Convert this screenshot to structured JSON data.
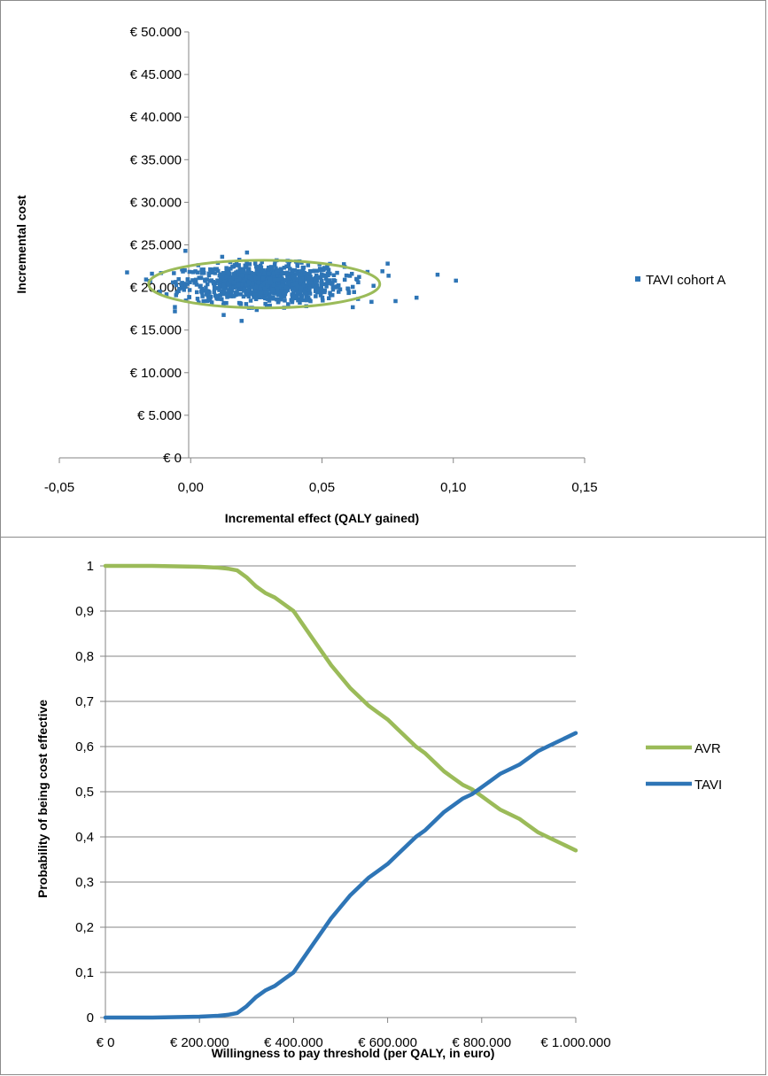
{
  "chart_data": [
    {
      "type": "scatter",
      "xlabel": "Incremental effect (QALY gained)",
      "ylabel": "Incremental cost",
      "xlim": [
        -0.05,
        0.15
      ],
      "ylim": [
        0,
        50000
      ],
      "x_ticks": [
        "-0,05",
        "0,00",
        "0,05",
        "0,10",
        "0,15"
      ],
      "y_ticks": [
        "€ 0",
        "€ 5.000",
        "€ 10.000",
        "€ 15.000",
        "€ 20.000",
        "€ 25.000",
        "€ 30.000",
        "€ 35.000",
        "€ 40.000",
        "€ 45.000",
        "€ 50.000"
      ],
      "legend_position": "right",
      "series": [
        {
          "name": "TAVI cohort A",
          "color": "#2e75b6",
          "marker": "square",
          "cloud": {
            "x_mean": 0.028,
            "x_sd": 0.015,
            "y_mean": 20500,
            "y_sd": 1100,
            "count": 1000
          },
          "outliers": [
            {
              "x": 0.094,
              "y": 21500
            },
            {
              "x": 0.101,
              "y": 20800
            },
            {
              "x": 0.086,
              "y": 18800
            },
            {
              "x": 0.078,
              "y": 18400
            },
            {
              "x": 0.075,
              "y": 22800
            },
            {
              "x": 0.073,
              "y": 21900
            },
            {
              "x": -0.006,
              "y": 17200
            },
            {
              "x": -0.002,
              "y": 24300
            },
            {
              "x": 0.012,
              "y": 23600
            },
            {
              "x": 0.044,
              "y": 17800
            }
          ]
        }
      ],
      "ellipse": {
        "cx": 0.028,
        "cy": 20400,
        "rx": 0.044,
        "ry": 2800,
        "color": "#9bbb59"
      }
    },
    {
      "type": "line",
      "xlabel": "Willingness to pay threshold (per QALY, in euro)",
      "ylabel": "Probability of being cost effective",
      "xlim": [
        0,
        1000000
      ],
      "ylim": [
        0,
        1
      ],
      "x_ticks": [
        "€ 0",
        "€ 200.000",
        "€ 400.000",
        "€ 600.000",
        "€ 800.000",
        "€ 1.000.000"
      ],
      "y_ticks": [
        "0",
        "0,1",
        "0,2",
        "0,3",
        "0,4",
        "0,5",
        "0,6",
        "0,7",
        "0,8",
        "0,9",
        "1"
      ],
      "grid": true,
      "legend_position": "right",
      "x": [
        0,
        100000,
        200000,
        240000,
        260000,
        280000,
        300000,
        320000,
        340000,
        360000,
        380000,
        400000,
        420000,
        440000,
        460000,
        480000,
        500000,
        520000,
        540000,
        560000,
        580000,
        600000,
        620000,
        640000,
        660000,
        680000,
        700000,
        720000,
        740000,
        760000,
        780000,
        800000,
        820000,
        840000,
        860000,
        880000,
        900000,
        920000,
        940000,
        960000,
        980000,
        1000000
      ],
      "series": [
        {
          "name": "AVR",
          "color": "#9bbb59",
          "values": [
            1,
            1,
            0.998,
            0.996,
            0.994,
            0.99,
            0.975,
            0.955,
            0.94,
            0.93,
            0.915,
            0.9,
            0.87,
            0.84,
            0.81,
            0.78,
            0.755,
            0.73,
            0.71,
            0.69,
            0.675,
            0.66,
            0.64,
            0.62,
            0.6,
            0.585,
            0.565,
            0.545,
            0.53,
            0.515,
            0.505,
            0.49,
            0.475,
            0.46,
            0.45,
            0.44,
            0.425,
            0.41,
            0.4,
            0.39,
            0.38,
            0.37
          ]
        },
        {
          "name": "TAVI",
          "color": "#2e75b6",
          "values": [
            0,
            0,
            0.002,
            0.004,
            0.006,
            0.01,
            0.025,
            0.045,
            0.06,
            0.07,
            0.085,
            0.1,
            0.13,
            0.16,
            0.19,
            0.22,
            0.245,
            0.27,
            0.29,
            0.31,
            0.325,
            0.34,
            0.36,
            0.38,
            0.4,
            0.415,
            0.435,
            0.455,
            0.47,
            0.485,
            0.495,
            0.51,
            0.525,
            0.54,
            0.55,
            0.56,
            0.575,
            0.59,
            0.6,
            0.61,
            0.62,
            0.63
          ]
        }
      ]
    }
  ]
}
